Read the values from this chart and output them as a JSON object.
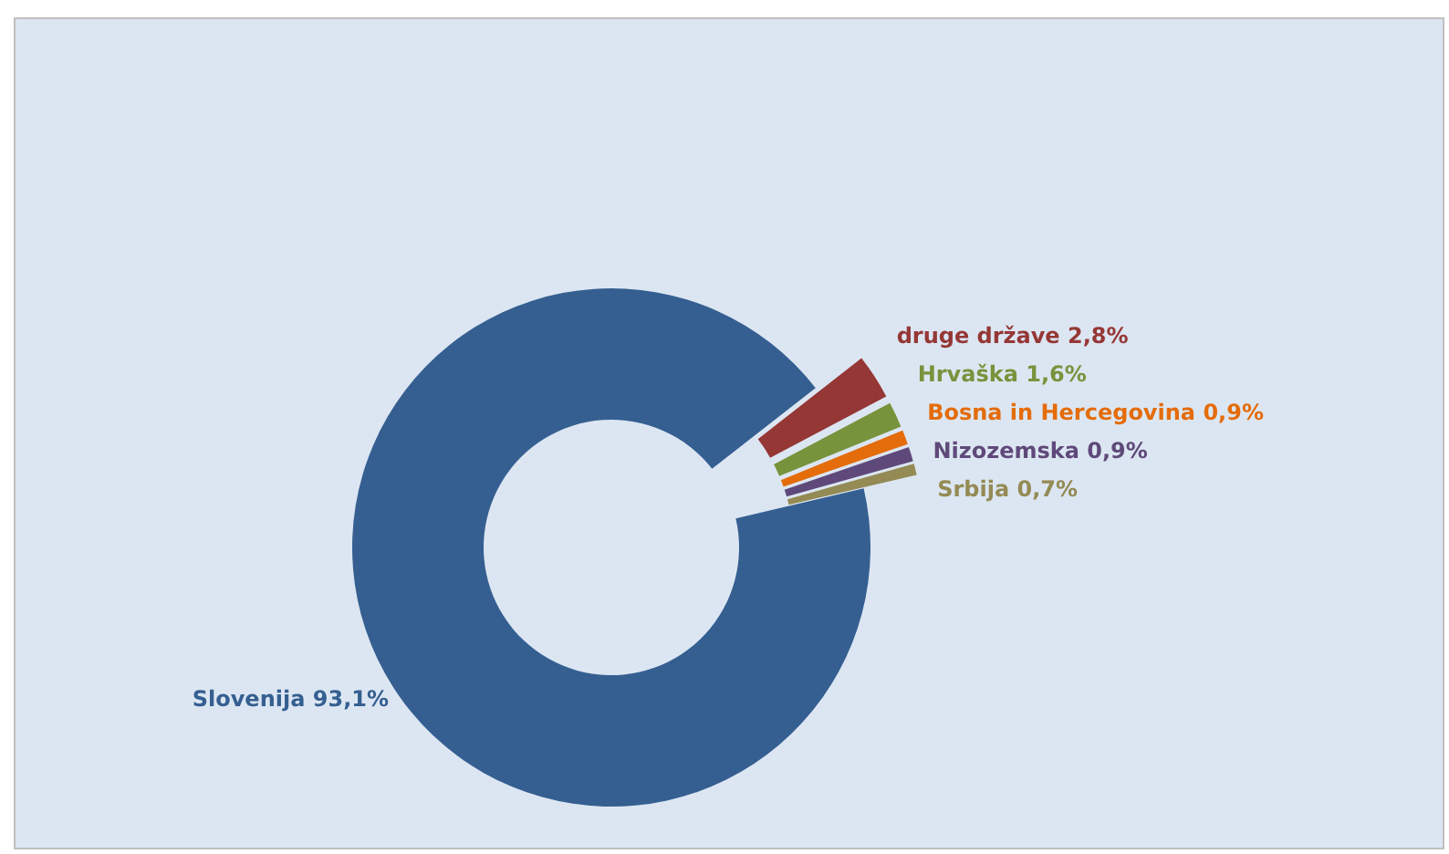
{
  "chart_data": {
    "type": "donut",
    "categories": [
      "Slovenija",
      "druge države",
      "Hrvaška",
      "Bosna in Hercegovina",
      "Nizozemska",
      "Srbija"
    ],
    "values": [
      93.1,
      2.8,
      1.6,
      0.9,
      0.9,
      0.7
    ],
    "colors": [
      "#355f91",
      "#953735",
      "#77933c",
      "#e46c0a",
      "#5f497a",
      "#948a54"
    ],
    "value_labels": [
      "93,1%",
      "2,8%",
      "1,6%",
      "0,9%",
      "0,9%",
      "0,7%"
    ],
    "legend": false
  }
}
